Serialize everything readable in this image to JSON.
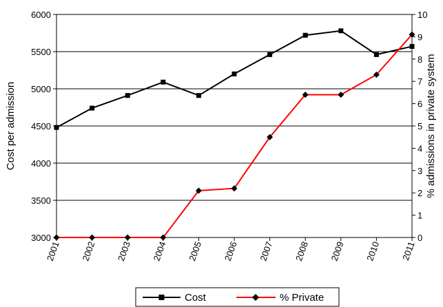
{
  "chart_data": {
    "type": "line",
    "x": [
      "2001",
      "2002",
      "2003",
      "2004",
      "2005",
      "2006",
      "2007",
      "2008",
      "2009",
      "2010",
      "2011"
    ],
    "series": [
      {
        "name": "Cost",
        "axis": "left",
        "color": "#000000",
        "marker": "square",
        "values": [
          4480,
          4740,
          4910,
          5090,
          4910,
          5200,
          5460,
          5720,
          5780,
          5460,
          5570
        ]
      },
      {
        "name": "% Private",
        "axis": "right",
        "color": "#ff0000",
        "marker": "diamond",
        "values": [
          0,
          0,
          0,
          0,
          2.1,
          2.2,
          4.5,
          6.4,
          6.4,
          7.3,
          9.1
        ]
      }
    ],
    "ylabel_left": "Cost per admission",
    "ylabel_right": "% admissions in private system",
    "ylim_left": [
      3000,
      6000
    ],
    "yticks_left": [
      "3000",
      "3500",
      "4000",
      "4500",
      "5000",
      "5500",
      "6000"
    ],
    "ylim_right": [
      0,
      10
    ],
    "yticks_right": [
      "0",
      "1",
      "2",
      "3",
      "4",
      "5",
      "6",
      "7",
      "8",
      "9",
      "10"
    ],
    "grid": "horizontal",
    "legend_position": "bottom-center"
  }
}
